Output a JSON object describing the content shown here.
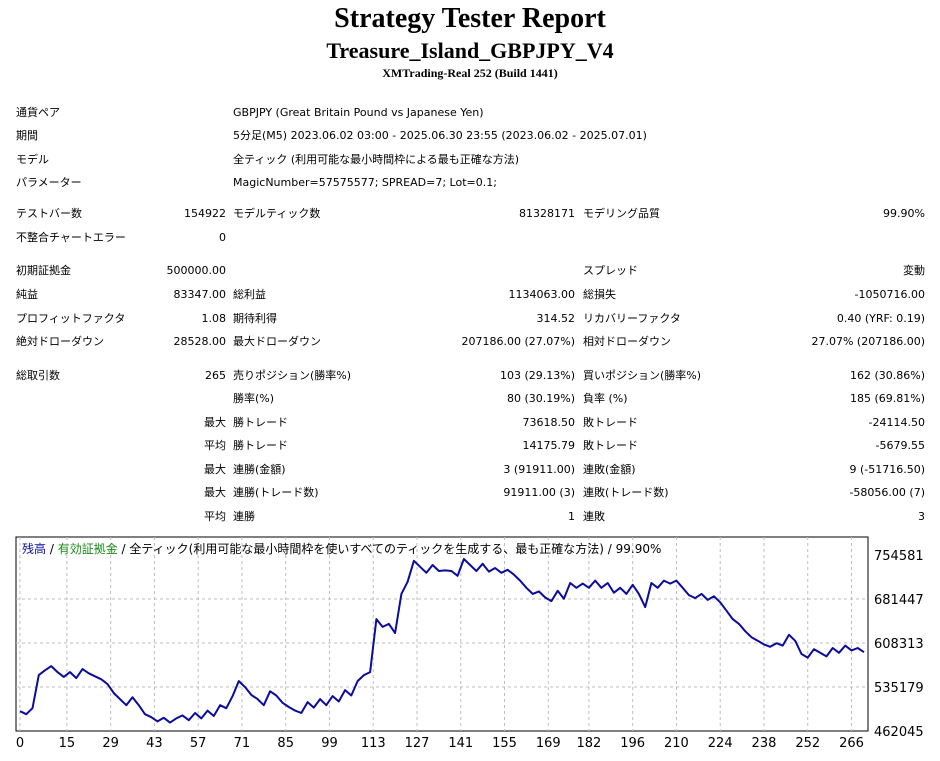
{
  "header": {
    "title": "Strategy Tester Report",
    "subtitle": "Treasure_Island_GBPJPY_V4",
    "server": "XMTrading-Real 252 (Build 1441)"
  },
  "info": [
    {
      "label": "通貨ペア",
      "value": "GBPJPY (Great Britain Pound vs Japanese Yen)"
    },
    {
      "label": "期間",
      "value": "5分足(M5) 2023.06.02 03:00 - 2025.06.30 23:55 (2023.06.02 - 2025.07.01)"
    },
    {
      "label": "モデル",
      "value": "全ティック (利用可能な最小時間枠による最も正確な方法)"
    },
    {
      "label": "パラメーター",
      "value": "MagicNumber=57575577; SPREAD=7; Lot=0.1;"
    }
  ],
  "stats": {
    "test_bars_label": "テストバー数",
    "test_bars": "154922",
    "model_ticks_label": "モデルティック数",
    "model_ticks": "81328171",
    "model_quality_label": "モデリング品質",
    "model_quality": "99.90%",
    "mismatch_label": "不整合チャートエラー",
    "mismatch": "0",
    "initial_deposit_label": "初期証拠金",
    "initial_deposit": "500000.00",
    "spread_label": "スプレッド",
    "spread": "変動",
    "net_profit_label": "純益",
    "net_profit": "83347.00",
    "gross_profit_label": "総利益",
    "gross_profit": "1134063.00",
    "gross_loss_label": "総損失",
    "gross_loss": "-1050716.00",
    "profit_factor_label": "プロフィットファクタ",
    "profit_factor": "1.08",
    "expected_payoff_label": "期待利得",
    "expected_payoff": "314.52",
    "recovery_factor_label": "リカバリーファクタ",
    "recovery_factor": "0.40 (YRF: 0.19)",
    "abs_dd_label": "絶対ドローダウン",
    "abs_dd": "28528.00",
    "max_dd_label": "最大ドローダウン",
    "max_dd": "207186.00 (27.07%)",
    "rel_dd_label": "相対ドローダウン",
    "rel_dd": "27.07% (207186.00)",
    "total_trades_label": "総取引数",
    "total_trades": "265",
    "short_label": "売りポジション(勝率%)",
    "short": "103 (29.13%)",
    "long_label": "買いポジション(勝率%)",
    "long": "162 (30.86%)",
    "win_rate_label": "勝率(%)",
    "win_rate": "80 (30.19%)",
    "loss_rate_label": "負率 (%)",
    "loss_rate": "185 (69.81%)",
    "max_label": "最大",
    "avg_label": "平均",
    "win_trade_label": "勝トレード",
    "lose_trade_label": "敗トレード",
    "largest_win": "73618.50",
    "largest_loss": "-24114.50",
    "avg_win": "14175.79",
    "avg_loss": "-5679.55",
    "cons_win_money_label": "連勝(金額)",
    "cons_win_money": "3 (91911.00)",
    "cons_loss_money_label": "連敗(金額)",
    "cons_loss_money": "9 (-51716.50)",
    "cons_win_count_label": "連勝(トレード数)",
    "cons_win_count": "91911.00 (3)",
    "cons_loss_count_label": "連敗(トレード数)",
    "cons_loss_count": "-58056.00 (7)",
    "cons_win_label": "連勝",
    "cons_win": "1",
    "cons_loss_label": "連敗",
    "cons_loss": "3"
  },
  "legend": {
    "balance": "残高",
    "sep1": " / ",
    "equity": "有効証拠金",
    "rest": " / 全ティック(利用可能な最小時間枠を使いすべてのティックを生成する、最も正確な方法) / 99.90%"
  },
  "chart_data": {
    "type": "line",
    "xlim": [
      0,
      270
    ],
    "ylim": [
      462045,
      770000
    ],
    "x_ticks": [
      "0",
      "15",
      "29",
      "43",
      "57",
      "71",
      "85",
      "99",
      "113",
      "127",
      "141",
      "155",
      "169",
      "182",
      "196",
      "210",
      "224",
      "238",
      "252",
      "266"
    ],
    "y_ticks": [
      "754581",
      "681447",
      "608313",
      "535179",
      "462045"
    ],
    "grid": true,
    "series": [
      {
        "color": "#0b0b9c",
        "values": [
          [
            0,
            495000
          ],
          [
            2,
            490000
          ],
          [
            4,
            500000
          ],
          [
            6,
            555000
          ],
          [
            8,
            563000
          ],
          [
            10,
            570000
          ],
          [
            12,
            560000
          ],
          [
            14,
            552000
          ],
          [
            16,
            560000
          ],
          [
            18,
            550000
          ],
          [
            20,
            565000
          ],
          [
            22,
            558000
          ],
          [
            24,
            553000
          ],
          [
            26,
            548000
          ],
          [
            28,
            540000
          ],
          [
            30,
            525000
          ],
          [
            32,
            515000
          ],
          [
            34,
            505000
          ],
          [
            36,
            518000
          ],
          [
            38,
            505000
          ],
          [
            40,
            490000
          ],
          [
            42,
            485000
          ],
          [
            44,
            478000
          ],
          [
            46,
            484000
          ],
          [
            48,
            476000
          ],
          [
            50,
            483000
          ],
          [
            52,
            488000
          ],
          [
            54,
            480000
          ],
          [
            56,
            492000
          ],
          [
            58,
            483000
          ],
          [
            60,
            496000
          ],
          [
            62,
            487000
          ],
          [
            64,
            505000
          ],
          [
            66,
            500000
          ],
          [
            68,
            520000
          ],
          [
            70,
            545000
          ],
          [
            72,
            535000
          ],
          [
            74,
            522000
          ],
          [
            76,
            515000
          ],
          [
            78,
            505000
          ],
          [
            80,
            528000
          ],
          [
            82,
            521000
          ],
          [
            84,
            509000
          ],
          [
            86,
            502000
          ],
          [
            88,
            496000
          ],
          [
            90,
            492000
          ],
          [
            92,
            510000
          ],
          [
            94,
            501000
          ],
          [
            96,
            515000
          ],
          [
            98,
            505000
          ],
          [
            100,
            520000
          ],
          [
            102,
            511000
          ],
          [
            104,
            530000
          ],
          [
            106,
            521000
          ],
          [
            108,
            545000
          ],
          [
            110,
            555000
          ],
          [
            112,
            560000
          ],
          [
            114,
            648000
          ],
          [
            116,
            635000
          ],
          [
            118,
            640000
          ],
          [
            120,
            625000
          ],
          [
            122,
            690000
          ],
          [
            124,
            710000
          ],
          [
            126,
            745000
          ],
          [
            128,
            735000
          ],
          [
            130,
            725000
          ],
          [
            132,
            738000
          ],
          [
            134,
            728000
          ],
          [
            136,
            729000
          ],
          [
            138,
            728000
          ],
          [
            140,
            720000
          ],
          [
            142,
            748000
          ],
          [
            144,
            738000
          ],
          [
            146,
            728000
          ],
          [
            148,
            740000
          ],
          [
            150,
            727000
          ],
          [
            152,
            733000
          ],
          [
            154,
            725000
          ],
          [
            156,
            730000
          ],
          [
            158,
            722000
          ],
          [
            160,
            712000
          ],
          [
            162,
            700000
          ],
          [
            164,
            690000
          ],
          [
            166,
            694000
          ],
          [
            168,
            684000
          ],
          [
            170,
            678000
          ],
          [
            172,
            695000
          ],
          [
            174,
            682000
          ],
          [
            176,
            708000
          ],
          [
            178,
            700000
          ],
          [
            180,
            707000
          ],
          [
            182,
            700000
          ],
          [
            184,
            712000
          ],
          [
            186,
            700000
          ],
          [
            188,
            708000
          ],
          [
            190,
            692000
          ],
          [
            192,
            700000
          ],
          [
            194,
            690000
          ],
          [
            196,
            705000
          ],
          [
            198,
            690000
          ],
          [
            200,
            668000
          ],
          [
            202,
            708000
          ],
          [
            204,
            700000
          ],
          [
            206,
            712000
          ],
          [
            208,
            707000
          ],
          [
            210,
            712000
          ],
          [
            212,
            700000
          ],
          [
            214,
            688000
          ],
          [
            216,
            683000
          ],
          [
            218,
            690000
          ],
          [
            220,
            680000
          ],
          [
            222,
            686000
          ],
          [
            224,
            676000
          ],
          [
            226,
            662000
          ],
          [
            228,
            648000
          ],
          [
            230,
            640000
          ],
          [
            232,
            628000
          ],
          [
            234,
            618000
          ],
          [
            236,
            612000
          ],
          [
            238,
            606000
          ],
          [
            240,
            602000
          ],
          [
            242,
            608000
          ],
          [
            244,
            604000
          ],
          [
            246,
            622000
          ],
          [
            248,
            612000
          ],
          [
            250,
            590000
          ],
          [
            252,
            584000
          ],
          [
            254,
            598000
          ],
          [
            256,
            592000
          ],
          [
            258,
            586000
          ],
          [
            260,
            600000
          ],
          [
            262,
            592000
          ],
          [
            264,
            604000
          ],
          [
            266,
            596000
          ],
          [
            268,
            600000
          ],
          [
            270,
            593000
          ]
        ]
      }
    ]
  }
}
